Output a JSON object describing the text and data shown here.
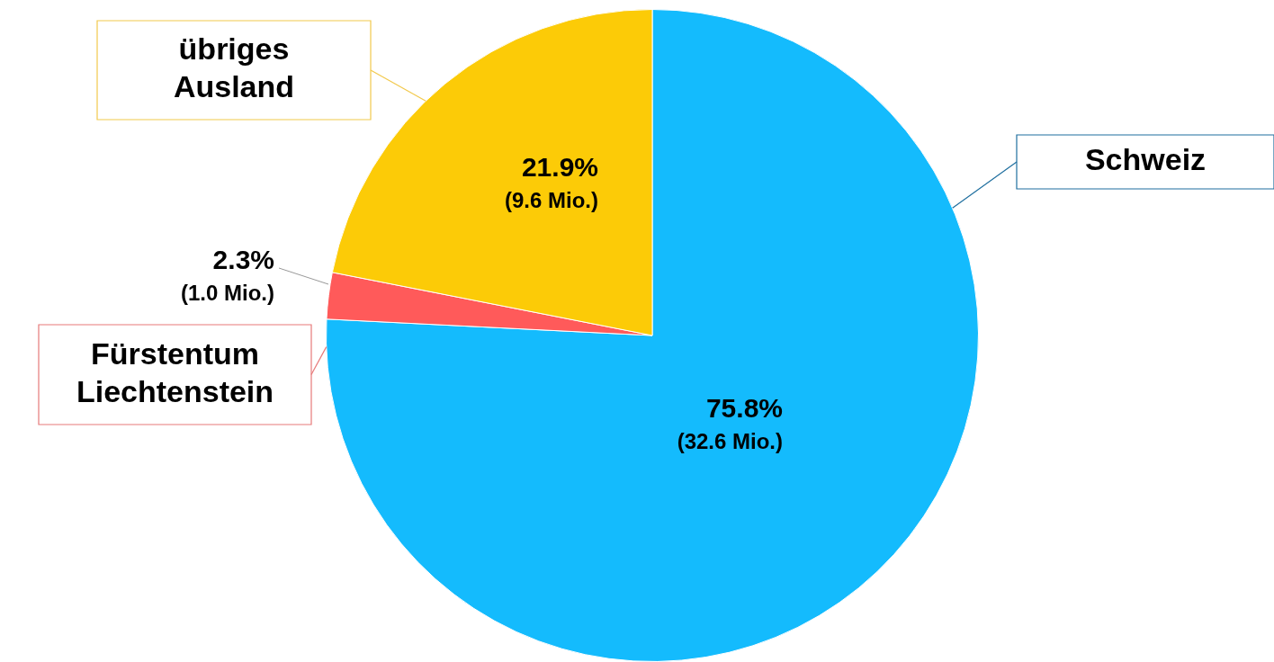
{
  "chart_data": {
    "type": "pie",
    "categories": [
      "Schweiz",
      "Fürstentum\nLiechtenstein",
      "übriges\nAusland"
    ],
    "values": [
      75.8,
      2.3,
      21.9
    ],
    "colors": [
      "#14bbfd",
      "#ff5a5a",
      "#fccb07"
    ],
    "value_labels": [
      "75.8%\n(32.6 Mio.)",
      "2.3%\n(1.0 Mio.)",
      "21.9%\n(9.6 Mio.)"
    ],
    "legend": false
  }
}
